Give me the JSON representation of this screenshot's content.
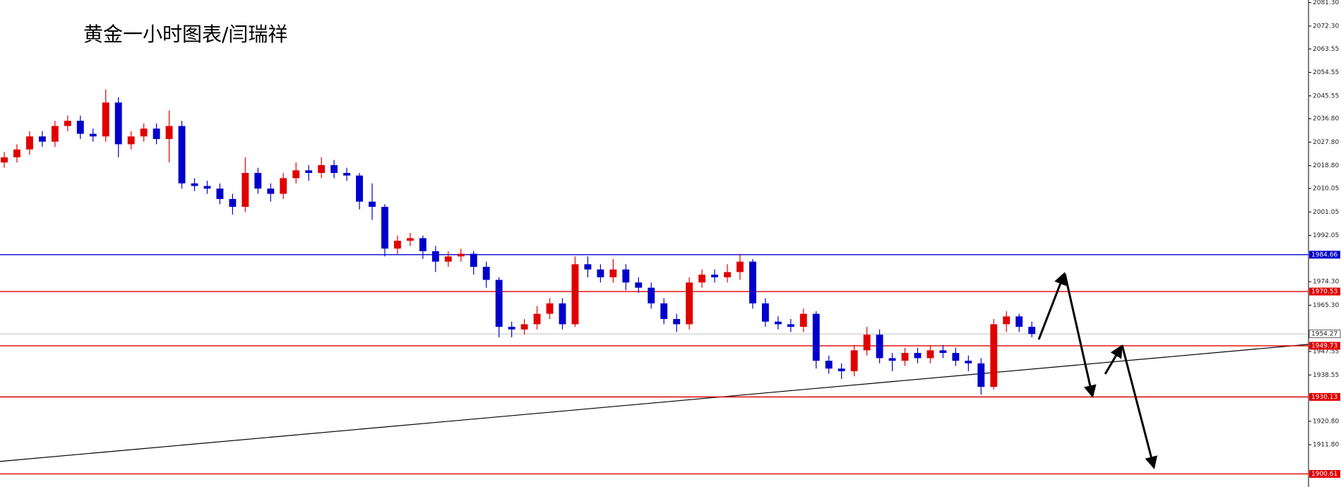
{
  "chart_data": {
    "type": "candlestick",
    "title": "黄金一小时图表/闫瑞祥",
    "ylim": [
      1895.6,
      2082.3
    ],
    "yticks": [
      {
        "value": 2081.3,
        "label": "2081.30"
      },
      {
        "value": 2072.3,
        "label": "2072.30"
      },
      {
        "value": 2063.55,
        "label": "2063.55"
      },
      {
        "value": 2054.55,
        "label": "2054.55"
      },
      {
        "value": 2045.55,
        "label": "2045.55"
      },
      {
        "value": 2036.8,
        "label": "2036.80"
      },
      {
        "value": 2027.8,
        "label": "2027.80"
      },
      {
        "value": 2018.8,
        "label": "2018.80"
      },
      {
        "value": 2010.05,
        "label": "2010.05"
      },
      {
        "value": 2001.05,
        "label": "2001.05"
      },
      {
        "value": 1992.05,
        "label": "1992.05"
      },
      {
        "value": 1974.3,
        "label": "1974.30"
      },
      {
        "value": 1965.3,
        "label": "1965.30"
      },
      {
        "value": 1947.55,
        "label": "1947.55"
      },
      {
        "value": 1938.55,
        "label": "1938.55"
      },
      {
        "value": 1920.8,
        "label": "1920.80"
      },
      {
        "value": 1911.8,
        "label": "1911.80"
      }
    ],
    "up_color": "#e00000",
    "down_color": "#0000cc",
    "open": [
      2020,
      2022,
      2025,
      2030,
      2028,
      2034,
      2036,
      2031,
      2030,
      2043,
      2027,
      2030,
      2033,
      2029,
      2034,
      2012,
      2011,
      2010,
      2006,
      2003,
      2016,
      2010,
      2008,
      2014,
      2017,
      2016,
      2019,
      2016,
      2015,
      2005,
      2003,
      1987,
      1990,
      1991,
      1986,
      1982,
      1984,
      1985,
      1980,
      1975,
      1957,
      1956,
      1958,
      1962,
      1966,
      1958,
      1981,
      1979,
      1976,
      1979,
      1974,
      1972,
      1966,
      1960,
      1958,
      1974,
      1977,
      1976,
      1978,
      1982,
      1966,
      1959,
      1958,
      1957,
      1962,
      1944,
      1941,
      1940,
      1948,
      1954,
      1945,
      1944,
      1947,
      1945,
      1948,
      1947,
      1944,
      1943,
      1934,
      1958,
      1961,
      1957
    ],
    "high": [
      2024,
      2027,
      2032,
      2032,
      2036,
      2038,
      2038,
      2033,
      2048,
      2045,
      2032,
      2035,
      2035,
      2040,
      2036,
      2014,
      2013,
      2012,
      2008,
      2022,
      2018,
      2012,
      2016,
      2020,
      2019,
      2022,
      2021,
      2018,
      2016,
      2012,
      2004,
      1992,
      1993,
      1992,
      1988,
      1986,
      1987,
      1986,
      1982,
      1976,
      1959,
      1960,
      1965,
      1968,
      1968,
      1984,
      1984,
      1981,
      1983,
      1981,
      1976,
      1974,
      1968,
      1962,
      1976,
      1979,
      1979,
      1981,
      1985,
      1983,
      1968,
      1961,
      1960,
      1964,
      1963,
      1946,
      1943,
      1950,
      1957,
      1956,
      1947,
      1949,
      1949,
      1950,
      1950,
      1949,
      1946,
      1945,
      1960,
      1963,
      1962,
      1959
    ],
    "low": [
      2018,
      2020,
      2023,
      2026,
      2026,
      2032,
      2029,
      2028,
      2028,
      2022,
      2025,
      2028,
      2027,
      2020,
      2010,
      2009,
      2008,
      2004,
      2000,
      2001,
      2008,
      2005,
      2006,
      2012,
      2013,
      2014,
      2014,
      2013,
      2002,
      1998,
      1984,
      1985,
      1988,
      1983,
      1978,
      1980,
      1982,
      1977,
      1972,
      1953,
      1953,
      1954,
      1956,
      1960,
      1956,
      1957,
      1976,
      1974,
      1974,
      1971,
      1970,
      1964,
      1958,
      1955,
      1956,
      1972,
      1974,
      1974,
      1975,
      1964,
      1957,
      1956,
      1955,
      1955,
      1941,
      1939,
      1937,
      1938,
      1946,
      1943,
      1940,
      1942,
      1943,
      1943,
      1945,
      1942,
      1940,
      1931,
      1933,
      1955,
      1955,
      1953
    ],
    "close": [
      2022,
      2025,
      2030,
      2028,
      2034,
      2036,
      2031,
      2030,
      2043,
      2027,
      2030,
      2033,
      2029,
      2034,
      2012,
      2011,
      2010,
      2006,
      2003,
      2016,
      2010,
      2008,
      2014,
      2017,
      2016,
      2019,
      2016,
      2015,
      2005,
      2003,
      1987,
      1990,
      1991,
      1986,
      1982,
      1984,
      1985,
      1980,
      1975,
      1957,
      1956,
      1958,
      1962,
      1966,
      1958,
      1981,
      1979,
      1976,
      1979,
      1974,
      1972,
      1966,
      1960,
      1958,
      1974,
      1977,
      1976,
      1978,
      1982,
      1966,
      1959,
      1958,
      1957,
      1962,
      1944,
      1941,
      1940,
      1948,
      1954,
      1945,
      1944,
      1947,
      1945,
      1948,
      1947,
      1944,
      1943,
      1934,
      1958,
      1961,
      1957,
      1954.27
    ],
    "levels": [
      {
        "value": 1984.66,
        "color": "#0000cc"
      },
      {
        "value": 1970.53,
        "color": "#e00000"
      },
      {
        "value": 1949.73,
        "color": "#e00000"
      },
      {
        "value": 1930.13,
        "color": "#e00000"
      },
      {
        "value": 1900.61,
        "color": "#e00000"
      }
    ],
    "trendline": {
      "start": 1905.4,
      "end": 1950.3,
      "color": "#000000"
    }
  }
}
